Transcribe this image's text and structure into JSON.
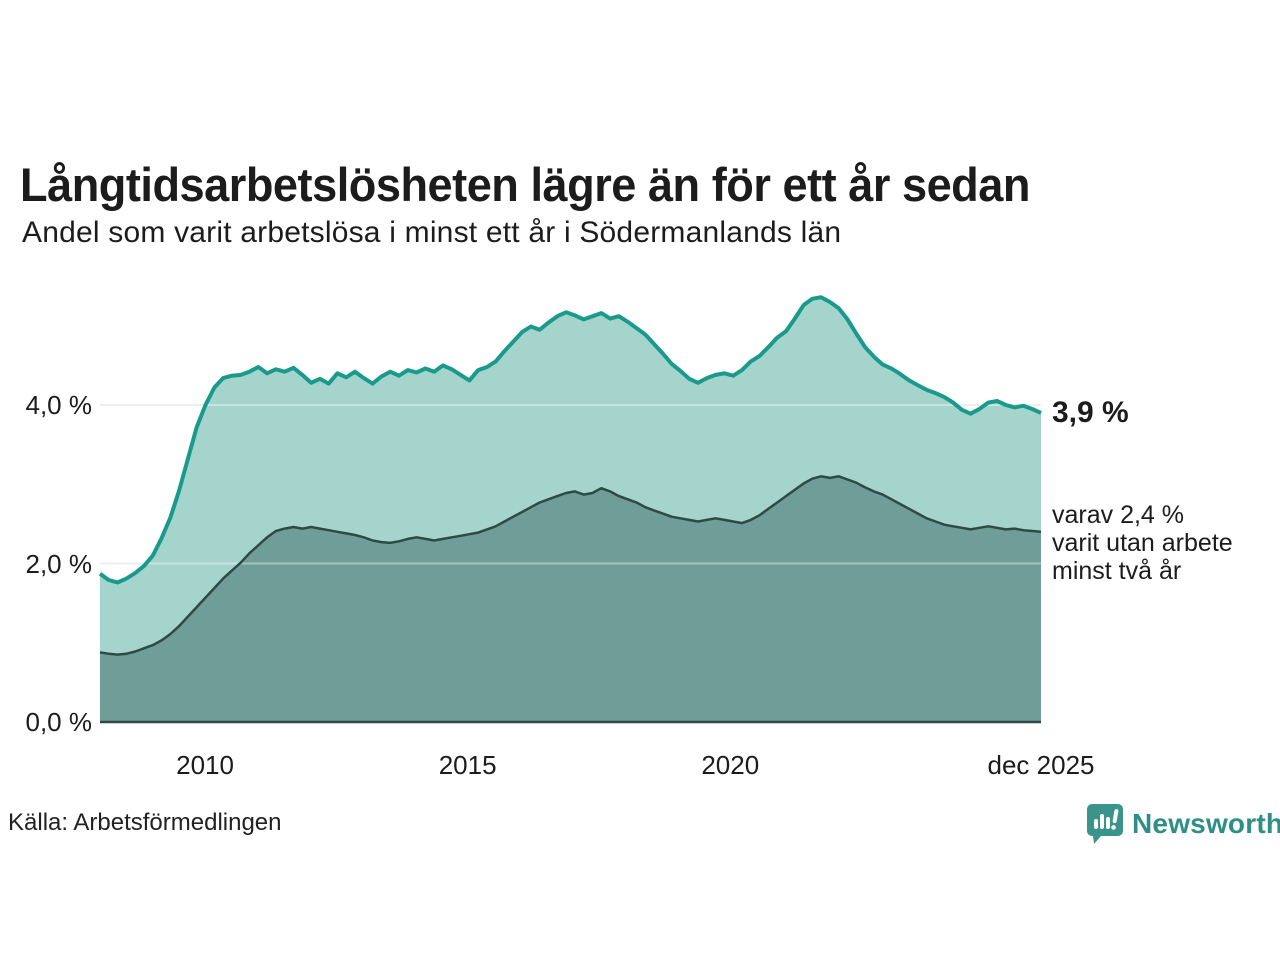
{
  "header": {
    "title": "Långtidsarbetslösheten lägre än för ett år sedan",
    "subtitle": "Andel som varit arbetslösa i minst ett år i Södermanlands län"
  },
  "annotations": {
    "latest_value": "3,9 %",
    "secondary_note": "varav 2,4 %\nvarit utan arbete\nminst två år"
  },
  "footer": {
    "source": "Källa: Arbetsförmedlingen",
    "brand": "Newsworthy"
  },
  "colors": {
    "line_primary": "#1a9a8c",
    "fill_primary": "#a5d4cd",
    "line_secondary": "#2f4a45",
    "fill_secondary": "#6f9e98",
    "gridline": "#e3e6e5",
    "gridline_overlay": "rgba(255,255,255,0.38)",
    "axis_line": "#2f4a45",
    "text": "#1c1c1c",
    "brand_teal": "#2e8f86"
  },
  "chart_data": {
    "type": "area",
    "title": "Långtidsarbetslösheten lägre än för ett år sedan",
    "subtitle": "Andel som varit arbetslösa i minst ett år i Södermanlands län",
    "region": "Södermanlands län",
    "unit": "percent",
    "x_unit": "decimal_year",
    "xlim": [
      2008.0,
      2025.917
    ],
    "ylim": [
      0,
      5.5
    ],
    "grid": "horizontal",
    "x_ticks": [
      {
        "value": 2010,
        "label": "2010"
      },
      {
        "value": 2015,
        "label": "2015"
      },
      {
        "value": 2020,
        "label": "2020"
      },
      {
        "value": 2025.917,
        "label": "dec 2025"
      }
    ],
    "y_ticks": [
      {
        "value": 0,
        "label": "0,0 %"
      },
      {
        "value": 2,
        "label": "2,0 %"
      },
      {
        "value": 4,
        "label": "4,0 %"
      }
    ],
    "sample_interval_years": 0.1675,
    "series": [
      {
        "name": "Andel som varit arbetslösa i minst ett år",
        "color": "#1a9a8c",
        "fill": "#a5d4cd",
        "stroke_width": 4,
        "latest_label": "3,9 %",
        "latest_value": 3.9,
        "values": [
          1.87,
          1.79,
          1.76,
          1.81,
          1.88,
          1.97,
          2.1,
          2.32,
          2.58,
          2.92,
          3.32,
          3.72,
          4.0,
          4.22,
          4.34,
          4.37,
          4.38,
          4.42,
          4.48,
          4.4,
          4.45,
          4.42,
          4.47,
          4.38,
          4.28,
          4.33,
          4.27,
          4.4,
          4.35,
          4.42,
          4.34,
          4.27,
          4.36,
          4.42,
          4.37,
          4.44,
          4.41,
          4.46,
          4.42,
          4.5,
          4.45,
          4.38,
          4.31,
          4.44,
          4.48,
          4.55,
          4.68,
          4.8,
          4.92,
          4.99,
          4.95,
          5.04,
          5.12,
          5.17,
          5.13,
          5.08,
          5.12,
          5.16,
          5.09,
          5.12,
          5.05,
          4.97,
          4.89,
          4.77,
          4.65,
          4.52,
          4.43,
          4.33,
          4.28,
          4.34,
          4.38,
          4.4,
          4.37,
          4.44,
          4.55,
          4.62,
          4.73,
          4.85,
          4.93,
          5.09,
          5.26,
          5.34,
          5.36,
          5.3,
          5.22,
          5.08,
          4.9,
          4.73,
          4.61,
          4.51,
          4.46,
          4.39,
          4.31,
          4.25,
          4.19,
          4.15,
          4.1,
          4.03,
          3.94,
          3.89,
          3.95,
          4.03,
          4.05,
          4.0,
          3.97,
          3.99,
          3.95,
          3.9
        ]
      },
      {
        "name": "varav utan arbete minst två år",
        "color": "#2f4a45",
        "fill": "#6f9e98",
        "stroke_width": 2.5,
        "latest_label": "varav 2,4 % varit utan arbete minst två år",
        "latest_value": 2.4,
        "values": [
          0.88,
          0.86,
          0.85,
          0.86,
          0.89,
          0.93,
          0.97,
          1.03,
          1.11,
          1.21,
          1.33,
          1.45,
          1.57,
          1.69,
          1.81,
          1.91,
          2.01,
          2.13,
          2.23,
          2.33,
          2.41,
          2.44,
          2.46,
          2.44,
          2.46,
          2.44,
          2.42,
          2.4,
          2.38,
          2.36,
          2.33,
          2.29,
          2.27,
          2.26,
          2.28,
          2.31,
          2.33,
          2.31,
          2.29,
          2.31,
          2.33,
          2.35,
          2.37,
          2.39,
          2.43,
          2.47,
          2.53,
          2.59,
          2.65,
          2.71,
          2.77,
          2.81,
          2.85,
          2.89,
          2.91,
          2.87,
          2.89,
          2.95,
          2.91,
          2.85,
          2.81,
          2.77,
          2.71,
          2.67,
          2.63,
          2.59,
          2.57,
          2.55,
          2.53,
          2.55,
          2.57,
          2.55,
          2.53,
          2.51,
          2.55,
          2.61,
          2.69,
          2.77,
          2.85,
          2.93,
          3.01,
          3.07,
          3.1,
          3.08,
          3.1,
          3.06,
          3.02,
          2.96,
          2.91,
          2.87,
          2.81,
          2.75,
          2.69,
          2.63,
          2.57,
          2.53,
          2.49,
          2.47,
          2.45,
          2.43,
          2.45,
          2.47,
          2.45,
          2.43,
          2.44,
          2.42,
          2.41,
          2.4
        ]
      }
    ]
  }
}
